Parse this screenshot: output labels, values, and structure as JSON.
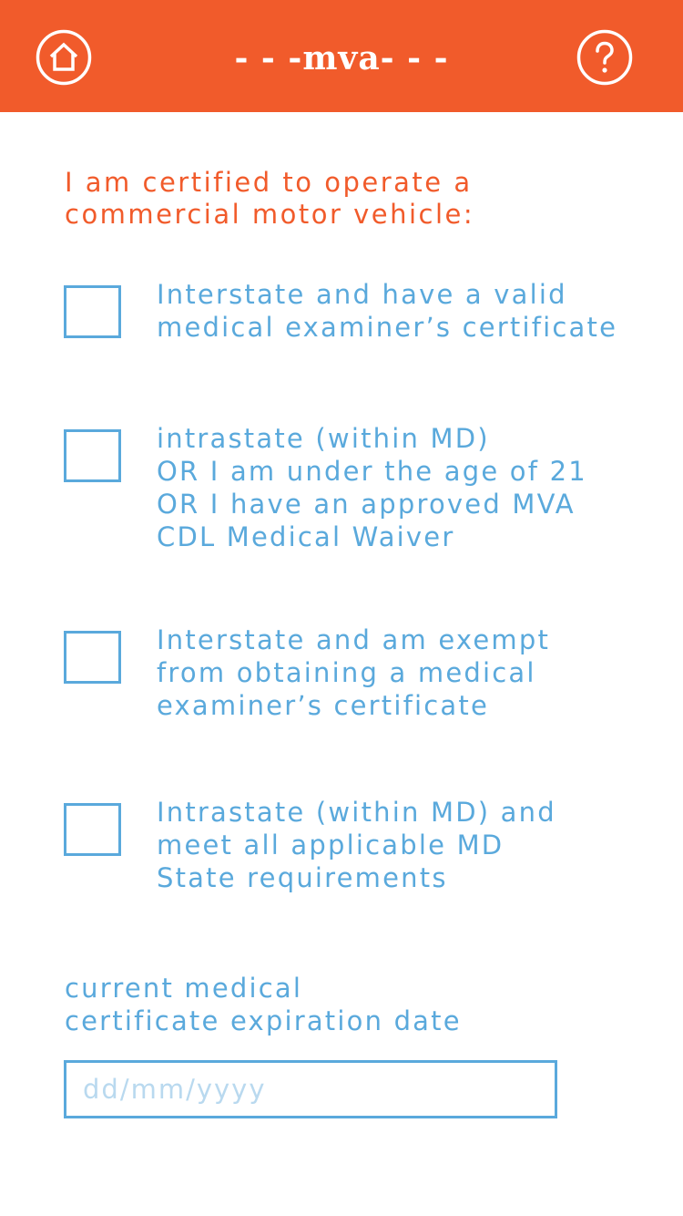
{
  "header": {
    "title": "- - -mva- - -",
    "home_icon": "home-icon",
    "help_icon": "help-icon",
    "background_color": "#f15b2b"
  },
  "form": {
    "heading": "I am certified to operate a\ncommercial motor vehicle:",
    "options": [
      {
        "label": "Interstate and have a valid\nmedical examiner’s certificate",
        "checked": false
      },
      {
        "label": "intrastate (within MD)\nOR I am under the age of 21\nOR I have an approved MVA\nCDL Medical Waiver",
        "checked": false
      },
      {
        "label": "Interstate and am exempt\nfrom obtaining a medical\nexaminer’s certificate",
        "checked": false
      },
      {
        "label": "Intrastate (within MD) and\nmeet all applicable MD\nState requirements",
        "checked": false
      }
    ],
    "date_label": "current medical\ncertificate expiration date",
    "date_placeholder": "dd/mm/yyyy",
    "date_value": ""
  },
  "colors": {
    "accent": "#f15b2b",
    "primary": "#5aa9dc"
  }
}
